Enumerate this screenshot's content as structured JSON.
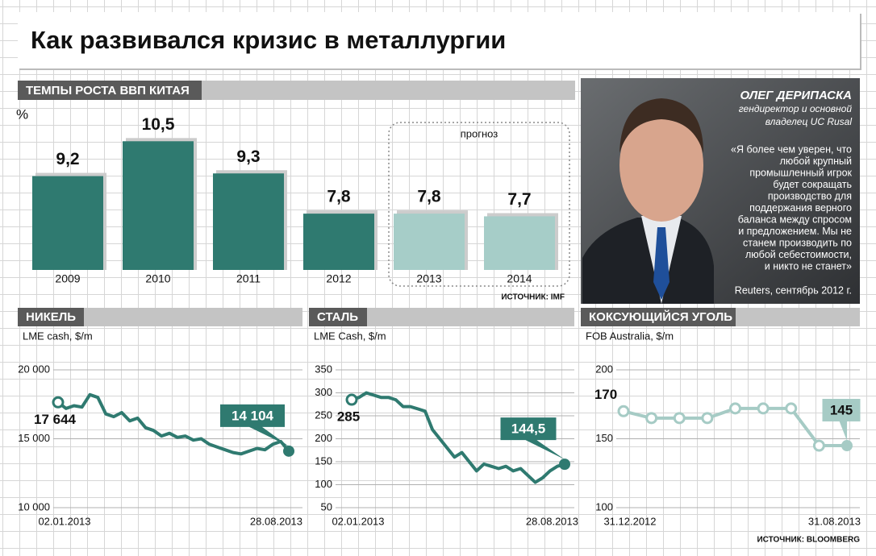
{
  "title": "Как развивался кризис в металлургии",
  "chart_data": [
    {
      "type": "bar",
      "title": "ТЕМПЫ РОСТА ВВП КИТАЯ",
      "y_label": "%",
      "categories": [
        "2009",
        "2010",
        "2011",
        "2012",
        "2013",
        "2014"
      ],
      "values": [
        9.2,
        10.5,
        9.3,
        7.8,
        7.8,
        7.7
      ],
      "value_labels": [
        "9,2",
        "10,5",
        "9,3",
        "7,8",
        "7,8",
        "7,7"
      ],
      "colors": [
        "#2f7a70",
        "#2f7a70",
        "#2f7a70",
        "#2f7a70",
        "#a6cdc8",
        "#a6cdc8"
      ],
      "forecast": {
        "label": "прогноз",
        "color": "#a6cdc8"
      },
      "ylim": [
        5.7,
        11.2
      ],
      "source": "ИСТОЧНИК: IMF"
    },
    {
      "type": "line",
      "title": "НИКЕЛЬ",
      "subtitle": "LME cash, $/m",
      "categories": [
        "02.01.2013",
        null,
        null,
        null,
        null,
        null,
        null,
        null,
        null,
        null,
        null,
        null,
        null,
        null,
        null,
        null,
        null,
        null,
        null,
        null,
        null,
        null,
        null,
        null,
        null,
        null,
        null,
        null,
        null,
        "28.08.2013"
      ],
      "values": [
        17644,
        17200,
        17400,
        17300,
        18200,
        18000,
        16800,
        16600,
        16900,
        16300,
        16500,
        15800,
        15600,
        15200,
        15400,
        15100,
        15200,
        14900,
        15000,
        14600,
        14400,
        14200,
        14000,
        13900,
        14100,
        14300,
        14200,
        14600,
        14800,
        14104
      ],
      "value_labels": [
        "17 644",
        null,
        null,
        null,
        null,
        null,
        null,
        null,
        null,
        null,
        null,
        null,
        null,
        null,
        null,
        null,
        null,
        null,
        null,
        null,
        null,
        null,
        null,
        null,
        null,
        null,
        null,
        null,
        null,
        "14 104"
      ],
      "color": "#2f7a70",
      "ylim": [
        10000,
        20000
      ],
      "yticks": [
        {
          "value": 10000,
          "label": "10 000"
        },
        {
          "value": 15000,
          "label": "15 000"
        },
        {
          "value": 20000,
          "label": "20 000"
        }
      ]
    },
    {
      "type": "line",
      "title": "СТАЛЬ",
      "subtitle": "LME Cash, $/m",
      "categories": [
        "02.01.2013",
        null,
        null,
        null,
        null,
        null,
        null,
        null,
        null,
        null,
        null,
        null,
        null,
        null,
        null,
        null,
        null,
        null,
        null,
        null,
        null,
        null,
        null,
        null,
        null,
        null,
        null,
        null,
        null,
        "28.08.2013"
      ],
      "values": [
        285,
        290,
        300,
        295,
        290,
        290,
        285,
        270,
        270,
        265,
        260,
        220,
        200,
        180,
        160,
        170,
        150,
        130,
        145,
        140,
        135,
        140,
        130,
        135,
        120,
        105,
        115,
        130,
        140,
        144.5
      ],
      "value_labels": [
        "285",
        null,
        null,
        null,
        null,
        null,
        null,
        null,
        null,
        null,
        null,
        null,
        null,
        null,
        null,
        null,
        null,
        null,
        null,
        null,
        null,
        null,
        null,
        null,
        null,
        null,
        null,
        null,
        null,
        "144,5"
      ],
      "color": "#2f7a70",
      "ylim": [
        50,
        350
      ],
      "yticks": [
        50,
        100,
        150,
        200,
        250,
        300,
        350
      ]
    },
    {
      "type": "line",
      "title": "КОКСУЮЩИЙСЯ УГОЛЬ",
      "subtitle": "FOB Australia, $/m",
      "categories": [
        "31.12.2012",
        null,
        null,
        null,
        null,
        null,
        null,
        null,
        "31.08.2013"
      ],
      "values": [
        170,
        165,
        165,
        165,
        172,
        172,
        172,
        145,
        145
      ],
      "value_labels": [
        "170",
        null,
        null,
        null,
        null,
        null,
        null,
        null,
        "145"
      ],
      "color": "#a6cbc5",
      "ylim": [
        100,
        200
      ],
      "yticks": [
        100,
        150,
        200
      ],
      "source": "ИСТОЧНИК: BLOOMBERG"
    }
  ],
  "profile": {
    "name": "ОЛЕГ ДЕРИПАСКА",
    "role": [
      "гендиректор и основной",
      "владелец UC Rusal"
    ],
    "quote": [
      "«Я более чем уверен, что",
      "любой крупный",
      "промышленный игрок",
      "будет сокращать",
      "производство для",
      "поддержания верного",
      "баланса между спросом",
      "и предложением. Мы не",
      "станем производить по",
      "любой себестоимости,",
      "и никто не станет»"
    ],
    "source": "Reuters, сентябрь 2012 г."
  }
}
